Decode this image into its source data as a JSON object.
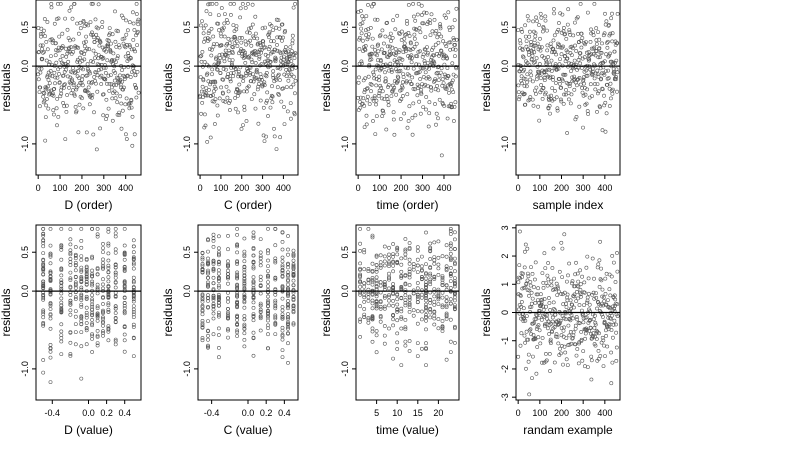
{
  "chart_data": [
    {
      "type": "scatter",
      "ylabel": "residuals",
      "xlabel": "D (order)",
      "xlim": [
        -10,
        470
      ],
      "ylim": [
        -1.4,
        0.85
      ],
      "xticks": [
        0,
        100,
        200,
        300,
        400
      ],
      "yticks": [
        0.5,
        0,
        -1.0
      ],
      "ytick_labels": [
        "0.5",
        "0.0",
        "-1.0"
      ],
      "hline": 0,
      "n_points": 460,
      "x_kind": "order",
      "y_range": [
        -1.25,
        0.8
      ],
      "y_center": 0,
      "y_spread": 0.38,
      "seed": 11
    },
    {
      "type": "scatter",
      "ylabel": "residuals",
      "xlabel": "C (order)",
      "xlim": [
        -10,
        470
      ],
      "ylim": [
        -1.4,
        0.85
      ],
      "xticks": [
        0,
        100,
        200,
        300,
        400
      ],
      "yticks": [
        0.5,
        0,
        -1.0
      ],
      "ytick_labels": [
        "0.5",
        "0.0",
        "-1.0"
      ],
      "hline": 0,
      "n_points": 460,
      "x_kind": "order",
      "y_range": [
        -1.35,
        0.8
      ],
      "y_center": 0,
      "y_spread": 0.36,
      "seed": 23
    },
    {
      "type": "scatter",
      "ylabel": "residuals",
      "xlabel": "time (order)",
      "xlim": [
        -10,
        470
      ],
      "ylim": [
        -1.4,
        0.85
      ],
      "xticks": [
        0,
        100,
        200,
        300,
        400
      ],
      "yticks": [
        0.5,
        0,
        -1.0
      ],
      "ytick_labels": [
        "0.5",
        "0.0",
        "-1.0"
      ],
      "hline": 0,
      "n_points": 460,
      "x_kind": "order",
      "y_range": [
        -1.3,
        0.8
      ],
      "y_center": 0,
      "y_spread": 0.37,
      "seed": 37
    },
    {
      "type": "scatter",
      "ylabel": "residuals",
      "xlabel": "sample index",
      "xlim": [
        -10,
        470
      ],
      "ylim": [
        -1.4,
        0.85
      ],
      "xticks": [
        0,
        100,
        200,
        300,
        400
      ],
      "yticks": [
        0.5,
        0,
        -1.0
      ],
      "ytick_labels": [
        "0.5",
        "0.0",
        "-1.0"
      ],
      "hline": 0,
      "n_points": 460,
      "x_kind": "order",
      "y_range": [
        -1.2,
        0.8
      ],
      "y_center": 0,
      "y_spread": 0.34,
      "seed": 51
    },
    {
      "type": "scatter",
      "ylabel": "residuals",
      "xlabel": "D (value)",
      "xlim": [
        -0.58,
        0.58
      ],
      "ylim": [
        -1.4,
        0.85
      ],
      "xticks": [
        -0.4,
        0.0,
        0.2,
        0.4
      ],
      "xtick_labels": [
        "-0.4",
        "0.0",
        "0.2",
        "0.4"
      ],
      "yticks": [
        0.5,
        0,
        -1.0
      ],
      "ytick_labels": [
        "0.5",
        "0.0",
        "-1.0"
      ],
      "hline": 0,
      "n_points": 460,
      "x_kind": "columns",
      "x_columns": [
        -0.5,
        -0.42,
        -0.3,
        -0.2,
        -0.14,
        -0.08,
        -0.02,
        0.04,
        0.1,
        0.16,
        0.22,
        0.3,
        0.4,
        0.5
      ],
      "y_range": [
        -1.3,
        0.8
      ],
      "y_center": 0,
      "y_spread": 0.36,
      "seed": 67
    },
    {
      "type": "scatter",
      "ylabel": "residuals",
      "xlabel": "C (value)",
      "xlim": [
        -0.55,
        0.55
      ],
      "ylim": [
        -1.4,
        0.85
      ],
      "xticks": [
        -0.4,
        0.0,
        0.2,
        0.4
      ],
      "xtick_labels": [
        "-0.4",
        "0.0",
        "0.2",
        "0.4"
      ],
      "yticks": [
        0.5,
        0,
        -1.0
      ],
      "ytick_labels": [
        "0.5",
        "0.0",
        "-1.0"
      ],
      "hline": 0,
      "n_points": 460,
      "x_kind": "columns",
      "x_columns": [
        -0.5,
        -0.44,
        -0.38,
        -0.32,
        -0.22,
        -0.12,
        -0.04,
        0.06,
        0.14,
        0.22,
        0.3,
        0.38,
        0.44,
        0.5
      ],
      "y_range": [
        -1.35,
        0.8
      ],
      "y_center": 0,
      "y_spread": 0.35,
      "seed": 79
    },
    {
      "type": "scatter",
      "ylabel": "residuals",
      "xlabel": "time (value)",
      "xlim": [
        0,
        25
      ],
      "ylim": [
        -1.4,
        0.85
      ],
      "xticks": [
        5,
        10,
        15,
        20
      ],
      "xtick_labels": [
        "5",
        "10",
        "15",
        "20"
      ],
      "yticks": [
        0.5,
        0,
        -1.0
      ],
      "ytick_labels": [
        "0.5",
        "0.0",
        "-1.0"
      ],
      "hline": 0,
      "n_points": 460,
      "x_kind": "columns",
      "x_columns": [
        1,
        2,
        3,
        4,
        5,
        6,
        7,
        8,
        9,
        10,
        11,
        12,
        13,
        14,
        15,
        16,
        17,
        18,
        19,
        20,
        21,
        22,
        23,
        24
      ],
      "y_range": [
        -1.3,
        0.8
      ],
      "y_center": 0,
      "y_spread": 0.37,
      "seed": 97
    },
    {
      "type": "scatter",
      "ylabel": "residuals",
      "xlabel": "randam example",
      "xlim": [
        -10,
        470
      ],
      "ylim": [
        -3.1,
        3.1
      ],
      "xticks": [
        0,
        100,
        200,
        300,
        400
      ],
      "yticks": [
        3,
        2,
        1,
        0,
        -1,
        -2,
        -3
      ],
      "ytick_labels": [
        "3",
        "2",
        "1",
        "0",
        "-1",
        "-2",
        "-3"
      ],
      "hline": 0,
      "n_points": 460,
      "x_kind": "order",
      "y_range": [
        -2.9,
        2.9
      ],
      "y_center": 0,
      "y_spread": 1.0,
      "seed": 113
    }
  ]
}
